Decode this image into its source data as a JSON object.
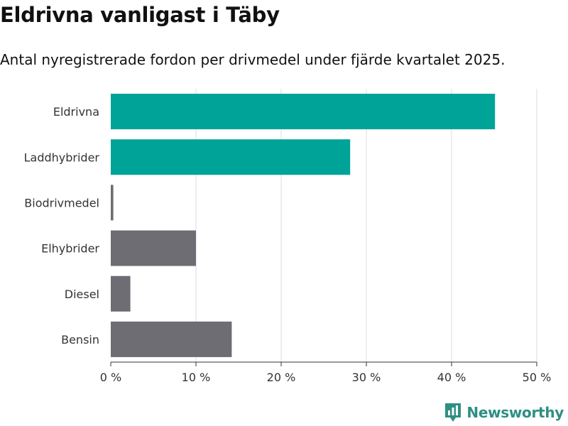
{
  "chart_data": {
    "type": "bar",
    "orientation": "horizontal",
    "title": "Eldrivna vanligast i Täby",
    "subtitle": "Antal nyregistrerade fordon per drivmedel under fjärde kvartalet 2025.",
    "categories": [
      "Eldrivna",
      "Laddhybrider",
      "Biodrivmedel",
      "Elhybrider",
      "Diesel",
      "Bensin"
    ],
    "values": [
      45.1,
      28.1,
      0.3,
      10.0,
      2.3,
      14.2
    ],
    "bar_colors": [
      "#00a398",
      "#00a398",
      "#6e6d73",
      "#6e6d73",
      "#6e6d73",
      "#6e6d73"
    ],
    "xlim": [
      0,
      50
    ],
    "x_ticks": [
      0,
      10,
      20,
      30,
      40,
      50
    ],
    "x_tick_labels": [
      "0 %",
      "10 %",
      "20 %",
      "30 %",
      "40 %",
      "50 %"
    ],
    "grid": true
  },
  "branding": {
    "logo_text": "Newsworthy",
    "logo_icon": "newsworthy-chart-icon",
    "logo_color": "#2f8f83"
  }
}
